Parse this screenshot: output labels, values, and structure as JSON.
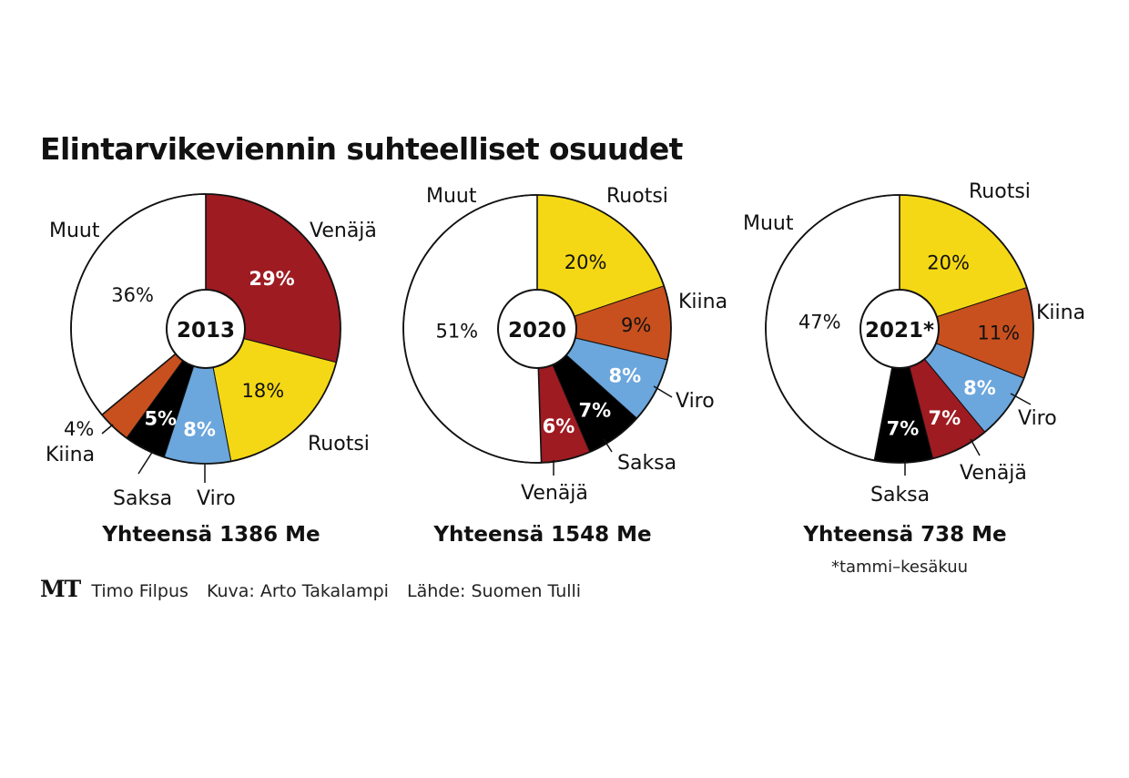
{
  "title": "Elintarvikeviennin suhteelliset osuudet",
  "credits": {
    "logo": "MT",
    "author": "Timo Filpus",
    "photo": "Kuva: Arto Takalampi",
    "source": "Lähde: Suomen Tulli"
  },
  "colors": {
    "Venäjä": "#9e1b22",
    "Ruotsi": "#f5d815",
    "Viro": "#6ba6dd",
    "Saksa": "#000000",
    "Kiina": "#c8501e",
    "Muut": "#ffffff"
  },
  "chart_data": [
    {
      "type": "pie",
      "center_label": "2013",
      "total_label": "Yhteensä 1386 Me",
      "note": "",
      "categories": [
        "Venäjä",
        "Ruotsi",
        "Viro",
        "Saksa",
        "Kiina",
        "Muut"
      ],
      "values": [
        29,
        18,
        8,
        5,
        4,
        36
      ],
      "value_labels": [
        "29%",
        "18%",
        "8%",
        "5%",
        "4%",
        "36%"
      ]
    },
    {
      "type": "pie",
      "center_label": "2020",
      "total_label": "Yhteensä 1548 Me",
      "note": "",
      "categories": [
        "Ruotsi",
        "Kiina",
        "Viro",
        "Saksa",
        "Venäjä",
        "Muut"
      ],
      "values": [
        20,
        9,
        8,
        7,
        6,
        51
      ],
      "value_labels": [
        "20%",
        "9%",
        "8%",
        "7%",
        "6%",
        "51%"
      ]
    },
    {
      "type": "pie",
      "center_label": "2021*",
      "total_label": "Yhteensä 738 Me",
      "note": "*tammi–kesäkuu",
      "categories": [
        "Ruotsi",
        "Kiina",
        "Viro",
        "Venäjä",
        "Saksa",
        "Muut"
      ],
      "values": [
        20,
        11,
        8,
        7,
        7,
        47
      ],
      "value_labels": [
        "20%",
        "11%",
        "8%",
        "7%",
        "7%",
        "47%"
      ]
    }
  ]
}
